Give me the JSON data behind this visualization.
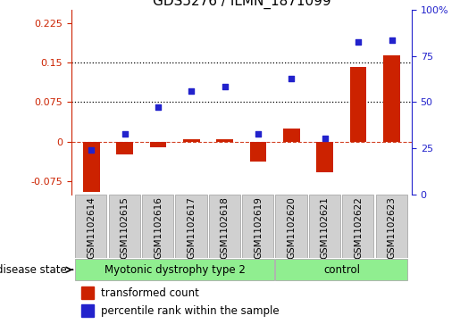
{
  "title": "GDS5276 / ILMN_1871099",
  "samples": [
    "GSM1102614",
    "GSM1102615",
    "GSM1102616",
    "GSM1102617",
    "GSM1102618",
    "GSM1102619",
    "GSM1102620",
    "GSM1102621",
    "GSM1102622",
    "GSM1102623"
  ],
  "red_bars": [
    -0.095,
    -0.025,
    -0.01,
    0.005,
    0.005,
    -0.038,
    0.025,
    -0.058,
    0.142,
    0.163
  ],
  "blue_pct": [
    20,
    30,
    47,
    57,
    60,
    30,
    65,
    27,
    88,
    89
  ],
  "ylim_left": [
    -0.1,
    0.25
  ],
  "ylim_right": [
    0,
    100
  ],
  "left_yticks": [
    -0.075,
    0,
    0.075,
    0.15,
    0.225
  ],
  "right_yticks": [
    0,
    25,
    50,
    75,
    100
  ],
  "hlines": [
    0.075,
    0.15
  ],
  "group1_label": "Myotonic dystrophy type 2",
  "group2_label": "control",
  "group1_count": 6,
  "group2_count": 4,
  "disease_state_label": "disease state",
  "legend1": "transformed count",
  "legend2": "percentile rank within the sample",
  "bar_color": "#cc2200",
  "dot_color": "#2222cc",
  "group_bg": "#90ee90",
  "tick_bg": "#d0d0d0",
  "title_fontsize": 11,
  "label_fontsize": 7.5,
  "axis_fontsize": 8,
  "group_fontsize": 8.5
}
